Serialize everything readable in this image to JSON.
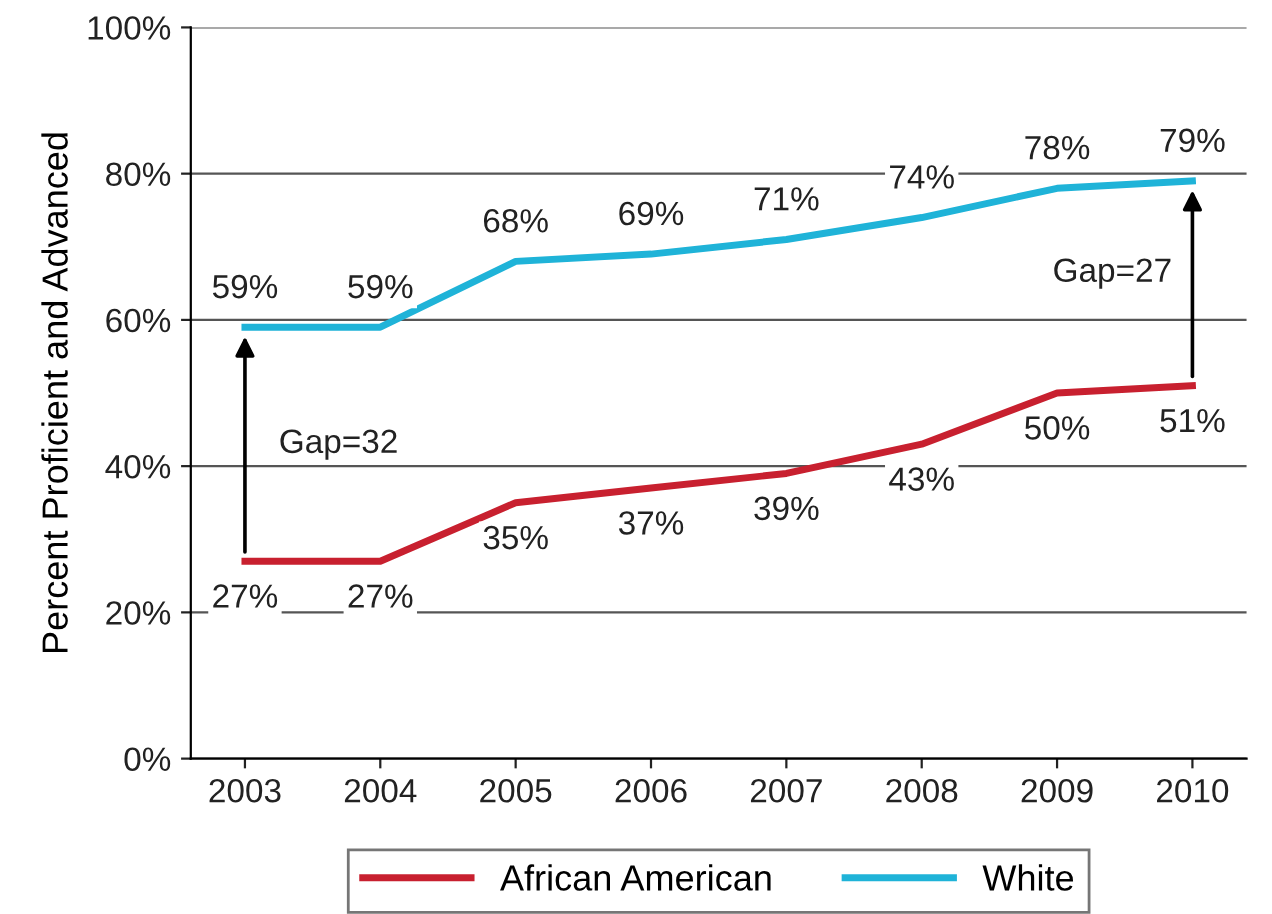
{
  "chart_data": {
    "type": "line",
    "ylabel": "Percent Proficient and Advanced",
    "categories": [
      "2003",
      "2004",
      "2005",
      "2006",
      "2007",
      "2008",
      "2009",
      "2010"
    ],
    "series": [
      {
        "name": "African American",
        "color": "#c8202f",
        "values": [
          27,
          27,
          35,
          37,
          39,
          43,
          50,
          51
        ],
        "value_labels": [
          "27%",
          "27%",
          "35%",
          "37%",
          "39%",
          "43%",
          "50%",
          "51%"
        ]
      },
      {
        "name": "White",
        "color": "#1fb3d8",
        "values": [
          59,
          59,
          68,
          69,
          71,
          74,
          78,
          79
        ],
        "value_labels": [
          "59%",
          "59%",
          "68%",
          "69%",
          "71%",
          "74%",
          "78%",
          "79%"
        ]
      }
    ],
    "ylim": [
      0,
      100
    ],
    "yticks": [
      {
        "value": 0,
        "label": "0%"
      },
      {
        "value": 20,
        "label": "20%"
      },
      {
        "value": 40,
        "label": "40%"
      },
      {
        "value": 60,
        "label": "60%"
      },
      {
        "value": 80,
        "label": "80%"
      },
      {
        "value": 100,
        "label": "100%"
      }
    ],
    "grid": "y",
    "legend": "bottom",
    "marker": "none",
    "line_style": "solid",
    "annotations": [
      "Gap=32",
      "Gap=27"
    ]
  }
}
